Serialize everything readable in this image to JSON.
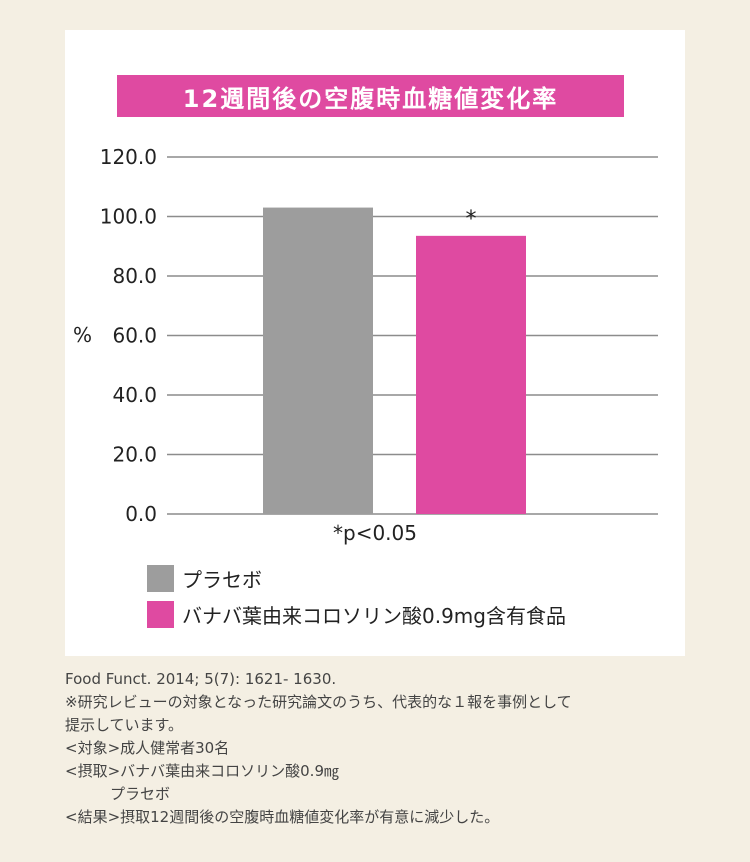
{
  "chart_data": {
    "type": "bar",
    "title": "12週間後の空腹時血糖値変化率",
    "ylabel": "%",
    "ylim": [
      0,
      120
    ],
    "yticks": [
      "0.0",
      "20.0",
      "40.0",
      "60.0",
      "80.0",
      "100.0",
      "120.0"
    ],
    "grid": true,
    "series": [
      {
        "name": "プラセボ",
        "value": 103,
        "color": "#9d9d9d",
        "annotation": ""
      },
      {
        "name": "バナバ葉由来コロソリン酸0.9mg含有食品",
        "value": 93.5,
        "color": "#df4aa1",
        "annotation": "*"
      }
    ],
    "note": "*p<0.05",
    "legend_position": "bottom-left"
  },
  "notes": [
    "Food Funct. 2014; 5(7): 1621- 1630.",
    "※研究レビューの対象となった研究論文のうち、代表的な１報を事例として",
    "提示しています。",
    "<対象>成人健常者30名",
    "<摂取>バナバ葉由来コロソリン酸0.9㎎",
    "　　　プラセボ",
    "<結果>摂取12週間後の空腹時血糖値変化率が有意に減少した。"
  ]
}
